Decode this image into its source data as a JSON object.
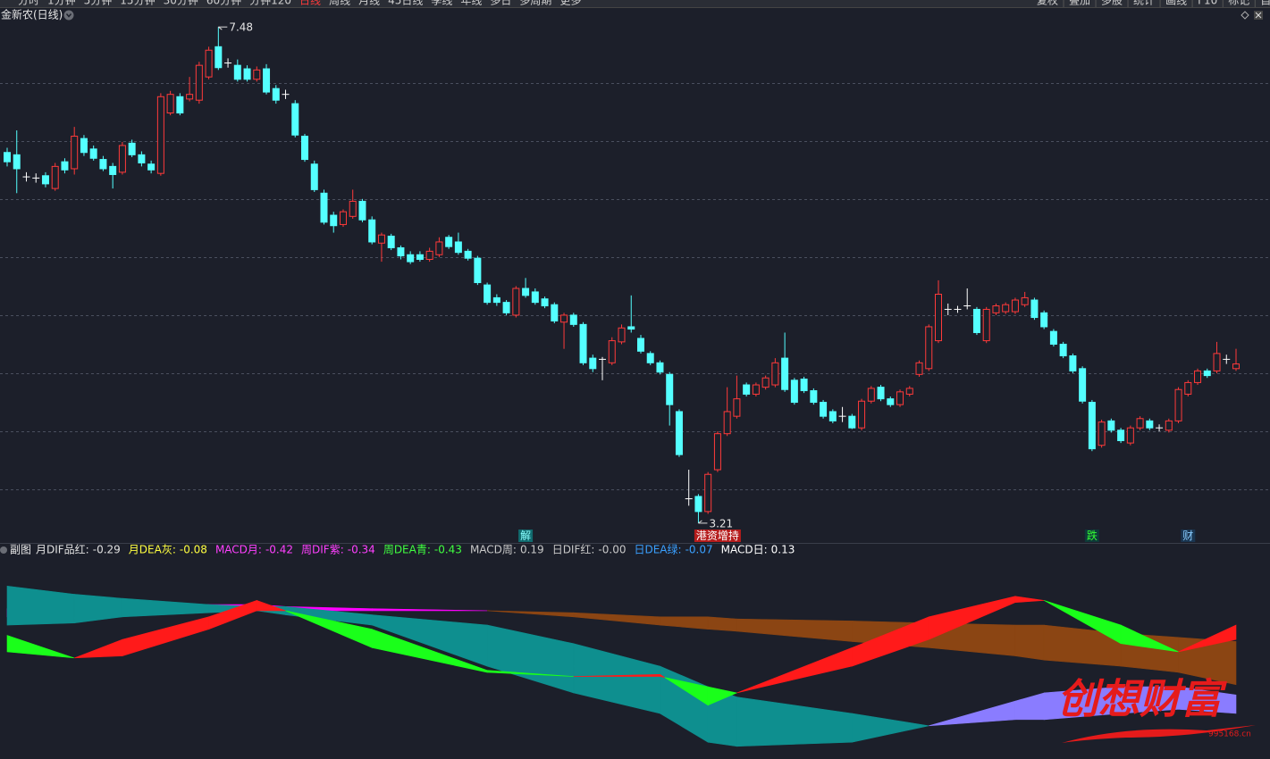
{
  "toolbar": {
    "left": [
      "分时",
      "1分钟",
      "5分钟",
      "15分钟",
      "30分钟",
      "60分钟",
      "分钟120",
      "日线",
      "周线",
      "月线",
      "45日线",
      "季线",
      "年线",
      "多日",
      "多周期",
      "更多"
    ],
    "active": "日线",
    "right": [
      "复权",
      "叠加",
      "多股",
      "统计",
      "画线",
      "F10",
      "标记",
      "自选"
    ]
  },
  "chart_data": [
    {
      "type": "candlestick",
      "title": "金新农(日线)",
      "up_color": "#ff3a3a",
      "down_color": "#54ffff",
      "flat_color": "#ffffff",
      "ylim": [
        3.14,
        7.52
      ],
      "yticks": [
        3.5,
        4.0,
        4.5,
        5.0,
        5.5,
        6.0,
        6.5,
        7.0
      ],
      "grid": true,
      "annotations": [
        7.48,
        3.21
      ],
      "categories": [
        null,
        null,
        null,
        null,
        null,
        null,
        null,
        null,
        null,
        null,
        null,
        null,
        null,
        null,
        null,
        null,
        null,
        null,
        null,
        null,
        null,
        null,
        null,
        null,
        null,
        null,
        null,
        null,
        null,
        null,
        null,
        null,
        null,
        null,
        null,
        null,
        null,
        null,
        null,
        null,
        null,
        null,
        null,
        null,
        null,
        null,
        null,
        null,
        null,
        null,
        null,
        null,
        null,
        null,
        "解",
        null,
        null,
        null,
        null,
        null,
        null,
        null,
        null,
        null,
        null,
        null,
        null,
        null,
        null,
        null,
        null,
        null,
        null,
        null,
        "港资增持",
        null,
        null,
        null,
        null,
        null,
        null,
        null,
        null,
        null,
        null,
        null,
        null,
        null,
        null,
        null,
        null,
        null,
        null,
        null,
        null,
        null,
        null,
        null,
        null,
        null,
        null,
        null,
        null,
        null,
        null,
        null,
        null,
        null,
        null,
        null,
        null,
        null,
        null,
        "跌",
        null,
        null,
        null,
        null,
        null,
        null,
        null,
        null,
        null,
        "财",
        null,
        null,
        null,
        null,
        null
      ],
      "ohlc": [
        [
          6.4,
          6.32,
          6.44,
          6.28
        ],
        [
          6.38,
          6.26,
          6.59,
          6.05
        ],
        [
          6.19,
          6.19,
          6.23,
          6.15
        ],
        [
          6.18,
          6.18,
          6.22,
          6.14
        ],
        [
          6.2,
          6.13,
          6.23,
          6.1
        ],
        [
          6.09,
          6.28,
          6.31,
          6.07
        ],
        [
          6.32,
          6.25,
          6.35,
          6.22
        ],
        [
          6.26,
          6.54,
          6.62,
          6.21
        ],
        [
          6.52,
          6.4,
          6.55,
          6.37
        ],
        [
          6.43,
          6.35,
          6.46,
          6.33
        ],
        [
          6.34,
          6.26,
          6.37,
          6.24
        ],
        [
          6.28,
          6.21,
          6.31,
          6.09
        ],
        [
          6.23,
          6.46,
          6.49,
          6.21
        ],
        [
          6.48,
          6.38,
          6.51,
          6.36
        ],
        [
          6.38,
          6.31,
          6.41,
          6.28
        ],
        [
          6.3,
          6.25,
          6.33,
          6.22
        ],
        [
          6.22,
          6.88,
          6.91,
          6.2
        ],
        [
          6.74,
          6.9,
          6.93,
          6.72
        ],
        [
          6.88,
          6.74,
          6.91,
          6.72
        ],
        [
          6.86,
          6.9,
          7.05,
          6.84
        ],
        [
          6.85,
          7.15,
          7.18,
          6.82
        ],
        [
          7.05,
          7.28,
          7.31,
          7.03
        ],
        [
          7.31,
          7.13,
          7.48,
          7.11
        ],
        [
          7.17,
          7.17,
          7.21,
          7.13
        ],
        [
          7.15,
          7.03,
          7.2,
          7.01
        ],
        [
          7.12,
          7.03,
          7.15,
          7.01
        ],
        [
          7.03,
          7.11,
          7.14,
          7.01
        ],
        [
          7.12,
          6.92,
          7.16,
          6.9
        ],
        [
          6.95,
          6.85,
          6.98,
          6.82
        ],
        [
          6.9,
          6.9,
          6.94,
          6.86
        ],
        [
          6.82,
          6.55,
          6.85,
          6.53
        ],
        [
          6.54,
          6.34,
          6.56,
          6.32
        ],
        [
          6.3,
          6.08,
          6.33,
          6.06
        ],
        [
          6.05,
          5.8,
          6.08,
          5.78
        ],
        [
          5.86,
          5.77,
          5.89,
          5.71
        ],
        [
          5.78,
          5.89,
          5.91,
          5.76
        ],
        [
          5.85,
          5.98,
          6.08,
          5.83
        ],
        [
          5.98,
          5.82,
          6.0,
          5.8
        ],
        [
          5.82,
          5.63,
          5.85,
          5.61
        ],
        [
          5.62,
          5.69,
          5.71,
          5.46
        ],
        [
          5.68,
          5.58,
          5.7,
          5.56
        ],
        [
          5.58,
          5.51,
          5.6,
          5.48
        ],
        [
          5.52,
          5.46,
          5.55,
          5.44
        ],
        [
          5.52,
          5.48,
          5.55,
          5.46
        ],
        [
          5.48,
          5.55,
          5.58,
          5.46
        ],
        [
          5.52,
          5.63,
          5.67,
          5.5
        ],
        [
          5.67,
          5.59,
          5.69,
          5.57
        ],
        [
          5.63,
          5.54,
          5.71,
          5.52
        ],
        [
          5.55,
          5.49,
          5.57,
          5.47
        ],
        [
          5.49,
          5.28,
          5.51,
          5.26
        ],
        [
          5.26,
          5.11,
          5.28,
          5.09
        ],
        [
          5.15,
          5.11,
          5.18,
          5.08
        ],
        [
          5.11,
          5.02,
          5.13,
          5.0
        ],
        [
          5.0,
          5.23,
          5.25,
          4.98
        ],
        [
          5.23,
          5.17,
          5.32,
          5.15
        ],
        [
          5.2,
          5.11,
          5.23,
          5.09
        ],
        [
          5.14,
          5.08,
          5.16,
          5.06
        ],
        [
          5.09,
          4.95,
          5.11,
          4.93
        ],
        [
          4.94,
          5.0,
          5.02,
          4.71
        ],
        [
          5.0,
          4.92,
          5.02,
          4.9
        ],
        [
          4.92,
          4.59,
          4.94,
          4.57
        ],
        [
          4.63,
          4.54,
          4.66,
          4.51
        ],
        [
          4.62,
          4.62,
          4.64,
          4.44
        ],
        [
          4.59,
          4.78,
          4.81,
          4.57
        ],
        [
          4.77,
          4.89,
          4.92,
          4.75
        ],
        [
          4.9,
          4.88,
          5.17,
          4.85
        ],
        [
          4.8,
          4.69,
          4.83,
          4.67
        ],
        [
          4.67,
          4.59,
          4.69,
          4.57
        ],
        [
          4.59,
          4.51,
          4.61,
          4.49
        ],
        [
          4.49,
          4.23,
          4.51,
          4.05
        ],
        [
          4.17,
          3.8,
          4.19,
          3.78
        ],
        [
          3.42,
          3.42,
          3.67,
          3.36
        ],
        [
          3.44,
          3.31,
          3.46,
          3.21
        ],
        [
          3.31,
          3.63,
          3.65,
          3.29
        ],
        [
          3.67,
          3.98,
          4.0,
          3.65
        ],
        [
          3.98,
          4.17,
          4.38,
          3.96
        ],
        [
          4.13,
          4.28,
          4.48,
          4.11
        ],
        [
          4.4,
          4.32,
          4.42,
          4.3
        ],
        [
          4.32,
          4.4,
          4.42,
          4.3
        ],
        [
          4.38,
          4.46,
          4.48,
          4.36
        ],
        [
          4.4,
          4.59,
          4.63,
          4.38
        ],
        [
          4.63,
          4.36,
          4.85,
          4.34
        ],
        [
          4.44,
          4.25,
          4.46,
          4.23
        ],
        [
          4.45,
          4.35,
          4.47,
          4.33
        ],
        [
          4.35,
          4.25,
          4.37,
          4.23
        ],
        [
          4.25,
          4.13,
          4.27,
          4.11
        ],
        [
          4.17,
          4.09,
          4.19,
          4.07
        ],
        [
          4.13,
          4.13,
          4.21,
          4.08
        ],
        [
          4.13,
          4.03,
          4.15,
          4.02
        ],
        [
          4.03,
          4.26,
          4.28,
          4.01
        ],
        [
          4.26,
          4.37,
          4.39,
          4.24
        ],
        [
          4.38,
          4.28,
          4.4,
          4.26
        ],
        [
          4.28,
          4.23,
          4.3,
          4.21
        ],
        [
          4.23,
          4.34,
          4.36,
          4.21
        ],
        [
          4.32,
          4.37,
          4.39,
          4.3
        ],
        [
          4.49,
          4.59,
          4.61,
          4.47
        ],
        [
          4.54,
          4.9,
          4.92,
          4.52
        ],
        [
          4.78,
          5.18,
          5.3,
          4.76
        ],
        [
          5.05,
          5.05,
          5.1,
          5.0
        ],
        [
          5.05,
          5.05,
          5.08,
          5.02
        ],
        [
          5.08,
          5.08,
          5.23,
          5.05
        ],
        [
          5.05,
          4.85,
          5.07,
          4.83
        ],
        [
          4.78,
          5.05,
          5.07,
          4.76
        ],
        [
          5.02,
          5.08,
          5.1,
          5.0
        ],
        [
          5.03,
          5.09,
          5.11,
          5.01
        ],
        [
          5.03,
          5.13,
          5.15,
          5.01
        ],
        [
          5.09,
          5.15,
          5.2,
          5.07
        ],
        [
          5.13,
          4.98,
          5.15,
          4.96
        ],
        [
          5.02,
          4.9,
          5.04,
          4.88
        ],
        [
          4.86,
          4.75,
          4.88,
          4.73
        ],
        [
          4.75,
          4.65,
          4.77,
          4.63
        ],
        [
          4.65,
          4.52,
          4.67,
          4.5
        ],
        [
          4.54,
          4.26,
          4.56,
          4.24
        ],
        [
          4.25,
          3.85,
          4.27,
          3.83
        ],
        [
          3.88,
          4.08,
          4.1,
          3.86
        ],
        [
          4.09,
          4.01,
          4.11,
          3.99
        ],
        [
          4.01,
          3.92,
          4.03,
          3.9
        ],
        [
          3.9,
          4.03,
          4.05,
          3.88
        ],
        [
          4.03,
          4.11,
          4.13,
          4.01
        ],
        [
          4.09,
          4.03,
          4.11,
          4.01
        ],
        [
          4.03,
          4.03,
          4.06,
          4.0
        ],
        [
          4.01,
          4.09,
          4.11,
          3.99
        ],
        [
          4.09,
          4.36,
          4.38,
          4.07
        ],
        [
          4.32,
          4.42,
          4.44,
          4.3
        ],
        [
          4.42,
          4.52,
          4.54,
          4.4
        ],
        [
          4.52,
          4.48,
          4.54,
          4.46
        ],
        [
          4.52,
          4.67,
          4.77,
          4.5
        ],
        [
          4.62,
          4.62,
          4.66,
          4.58
        ],
        [
          4.54,
          4.58,
          4.71,
          4.52
        ]
      ]
    },
    {
      "type": "ribbon",
      "title": "副图",
      "xlim": [
        0,
        128
      ],
      "ylim": [
        -0.643,
        0.313
      ],
      "x": [
        0,
        7,
        12,
        21,
        26,
        29,
        38,
        50,
        59,
        68,
        73,
        76,
        88,
        96,
        105,
        108,
        116,
        122,
        128
      ],
      "series": [
        {
          "name": "月DIF品红:",
          "color": "#e0e0e0",
          "up_color": "#ff00ff",
          "down_color": "#8b4513",
          "last": -0.29,
          "values": [
            0.08,
            0.09,
            0.1,
            0.1,
            0.1,
            0.09,
            0.08,
            0.07,
            0.04,
            0.0,
            -0.02,
            -0.03,
            -0.08,
            -0.11,
            -0.15,
            -0.17,
            -0.2,
            -0.23,
            -0.29
          ]
        },
        {
          "name": "月DEA灰:",
          "color": "#ffff40",
          "last": -0.08,
          "values": [
            0.04,
            0.06,
            0.07,
            0.07,
            0.07,
            0.07,
            0.07,
            0.07,
            0.06,
            0.04,
            0.04,
            0.03,
            0.02,
            0.01,
            0.0,
            0.0,
            -0.04,
            -0.06,
            -0.08
          ]
        },
        {
          "name": "周DIF紫:",
          "color": "#ff40ff",
          "up_color": "#8a7cff",
          "down_color": "#0e8f8f",
          "last": -0.34,
          "values": [
            0.0,
            0.01,
            0.04,
            0.06,
            0.07,
            0.05,
            0.0,
            -0.2,
            -0.33,
            -0.43,
            -0.57,
            -0.59,
            -0.57,
            -0.49,
            -0.37,
            -0.33,
            -0.3,
            -0.3,
            -0.34
          ]
        },
        {
          "name": "周DEA青:",
          "color": "#40ff40",
          "last": -0.43,
          "values": [
            0.19,
            0.15,
            0.13,
            0.1,
            0.09,
            0.09,
            0.05,
            0.0,
            -0.09,
            -0.2,
            -0.3,
            -0.35,
            -0.43,
            -0.49,
            -0.46,
            -0.46,
            -0.43,
            -0.41,
            -0.43
          ]
        },
        {
          "name": "日DIF红:",
          "color": "#c8c8c8",
          "up_color": "#ff1a1a",
          "down_color": "#1aff1a",
          "last": 0,
          "last_label": "-0.00",
          "values": [
            -0.13,
            -0.16,
            -0.07,
            0.04,
            0.12,
            0.07,
            -0.11,
            -0.23,
            -0.25,
            -0.24,
            -0.39,
            -0.33,
            -0.11,
            0.04,
            0.14,
            0.12,
            -0.09,
            -0.13,
            0.0
          ]
        },
        {
          "name": "日DEA绿:",
          "color": "#3aa0ff",
          "last": -0.07,
          "values": [
            -0.05,
            -0.16,
            -0.15,
            -0.02,
            0.07,
            0.07,
            -0.02,
            -0.22,
            -0.25,
            -0.25,
            -0.3,
            -0.33,
            -0.2,
            -0.07,
            0.11,
            0.12,
            0.0,
            -0.13,
            -0.07
          ]
        }
      ],
      "macd": [
        {
          "name": "MACD月:",
          "color": "#ff40ff",
          "value": -0.42
        },
        {
          "name": "MACD周:",
          "color": "#c8c8c8",
          "value": 0.19
        },
        {
          "name": "MACD日:",
          "color": "#ffffff",
          "value": 0.13
        }
      ]
    }
  ],
  "watermark": {
    "text": "创想财富",
    "url": "995168.cn"
  }
}
